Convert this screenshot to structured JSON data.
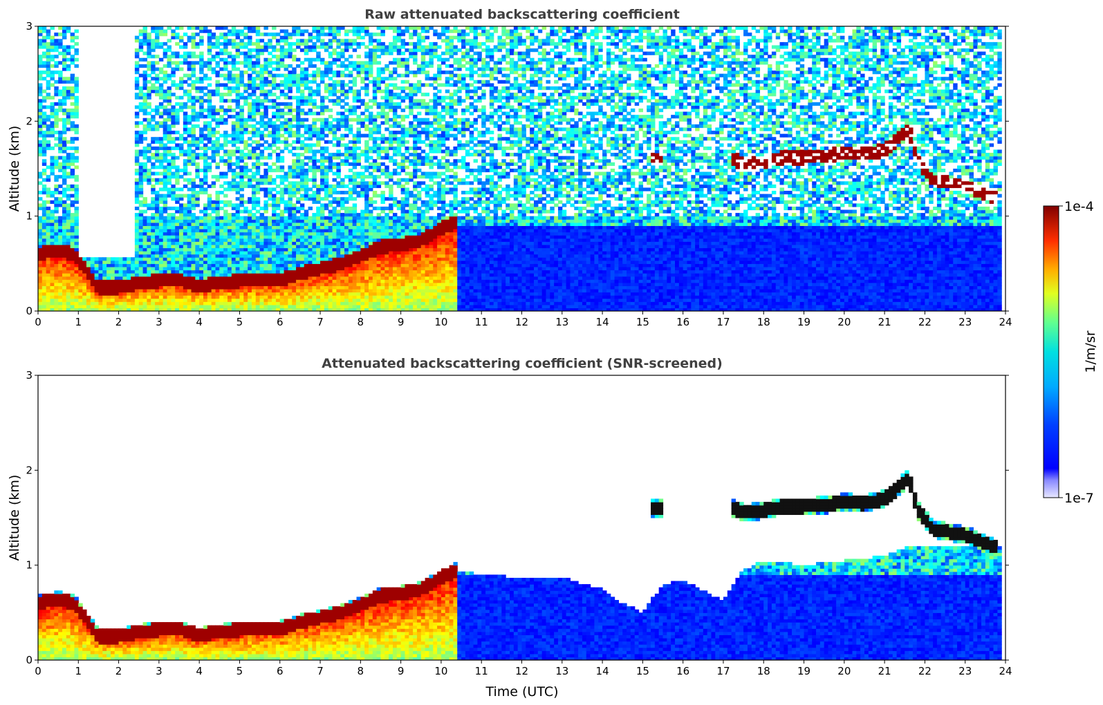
{
  "chart_data": [
    {
      "type": "heatmap",
      "title": "Raw attenuated backscattering coefficient",
      "xlabel": "",
      "ylabel": "Altitude (km)",
      "xlim": [
        0,
        24
      ],
      "ylim": [
        0,
        3
      ],
      "xticks": [
        "0",
        "1",
        "2",
        "3",
        "4",
        "5",
        "6",
        "7",
        "8",
        "9",
        "10",
        "11",
        "12",
        "13",
        "14",
        "15",
        "16",
        "17",
        "18",
        "19",
        "20",
        "21",
        "22",
        "23",
        "24"
      ],
      "yticks": [
        "0",
        "1",
        "2",
        "3"
      ],
      "colormap": "jet",
      "colorbar_label": "1/m/sr",
      "colorbar_ticks": [
        "1e-7",
        "1e-4"
      ],
      "layer_height_km": {
        "time": [
          0,
          0.5,
          0.9,
          1.5,
          2.0,
          2.5,
          3.0,
          3.5,
          4.0,
          4.5,
          5.0,
          5.5,
          6.0,
          6.5,
          7.0,
          7.5,
          8.0,
          8.5,
          9.0,
          9.5,
          10.0,
          10.4
        ],
        "height": [
          0.6,
          0.65,
          0.6,
          0.25,
          0.25,
          0.3,
          0.32,
          0.33,
          0.26,
          0.3,
          0.32,
          0.33,
          0.33,
          0.4,
          0.45,
          0.5,
          0.58,
          0.68,
          0.7,
          0.75,
          0.87,
          0.95
        ]
      },
      "upper_layer_km": {
        "time": [
          15.2,
          15.5,
          17.2,
          17.6,
          18.0,
          18.5,
          19.0,
          19.5,
          20.0,
          20.5,
          21.0,
          21.3,
          21.6,
          21.8,
          22.2,
          22.6,
          23.0,
          23.4,
          23.8
        ],
        "height": [
          1.6,
          1.6,
          1.6,
          1.55,
          1.58,
          1.62,
          1.62,
          1.63,
          1.67,
          1.65,
          1.7,
          1.8,
          1.93,
          1.6,
          1.38,
          1.35,
          1.32,
          1.25,
          1.18
        ]
      }
    },
    {
      "type": "heatmap",
      "title": "Attenuated backscattering coefficient (SNR-screened)",
      "xlabel": "Time (UTC)",
      "ylabel": "Altitude (km)",
      "xlim": [
        0,
        24
      ],
      "ylim": [
        0,
        3
      ],
      "xticks": [
        "0",
        "1",
        "2",
        "3",
        "4",
        "5",
        "6",
        "7",
        "8",
        "9",
        "10",
        "11",
        "12",
        "13",
        "14",
        "15",
        "16",
        "17",
        "18",
        "19",
        "20",
        "21",
        "22",
        "23",
        "24"
      ],
      "yticks": [
        "0",
        "1",
        "2",
        "3"
      ],
      "colormap": "jet",
      "screened_upper_limit_km": {
        "time": [
          10.4,
          11,
          12,
          13,
          14,
          14.5,
          15.0,
          15.5,
          16,
          17,
          17.5,
          18,
          19,
          20,
          21,
          21.6
        ],
        "height": [
          0.95,
          0.9,
          0.87,
          0.87,
          0.75,
          0.6,
          0.5,
          0.8,
          0.85,
          0.62,
          0.95,
          1.05,
          1.0,
          1.05,
          1.1,
          1.2
        ]
      }
    }
  ]
}
